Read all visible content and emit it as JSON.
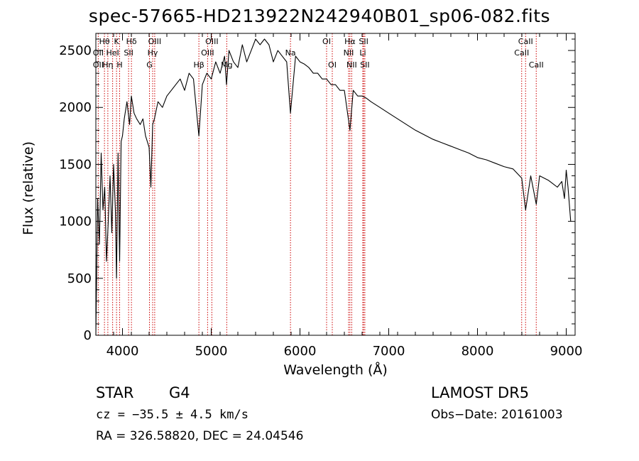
{
  "chart_data": {
    "type": "line",
    "title": "spec-57665-HD213922N242940B01_sp06-082.fits",
    "xlabel": "Wavelength (Å)",
    "ylabel": "Flux (relative)",
    "xlim": [
      3700,
      9100
    ],
    "ylim": [
      0,
      2650
    ],
    "xticks": [
      4000,
      5000,
      6000,
      7000,
      8000,
      9000
    ],
    "yticks": [
      0,
      500,
      1000,
      1500,
      2000,
      2500
    ],
    "grid": false,
    "line_color": "#000000",
    "marker_color": "#cc0000",
    "spectrum": {
      "name": "",
      "x": [
        3700,
        3720,
        3740,
        3760,
        3780,
        3800,
        3820,
        3840,
        3860,
        3880,
        3900,
        3920,
        3933,
        3950,
        3968,
        3985,
        4000,
        4020,
        4050,
        4080,
        4100,
        4130,
        4160,
        4200,
        4230,
        4260,
        4300,
        4320,
        4340,
        4360,
        4400,
        4450,
        4500,
        4550,
        4600,
        4650,
        4700,
        4750,
        4800,
        4861,
        4900,
        4950,
        5000,
        5050,
        5100,
        5150,
        5172,
        5200,
        5250,
        5300,
        5350,
        5400,
        5450,
        5500,
        5550,
        5600,
        5650,
        5700,
        5750,
        5800,
        5850,
        5893,
        5950,
        6000,
        6050,
        6100,
        6150,
        6200,
        6250,
        6300,
        6350,
        6400,
        6450,
        6500,
        6563,
        6600,
        6650,
        6700,
        6750,
        6800,
        6900,
        7000,
        7100,
        7200,
        7300,
        7400,
        7500,
        7600,
        7700,
        7800,
        7900,
        8000,
        8100,
        8200,
        8300,
        8400,
        8498,
        8542,
        8600,
        8662,
        8700,
        8750,
        8800,
        8850,
        8900,
        8950,
        8980,
        9000,
        9020,
        9050
      ],
      "y": [
        0,
        1200,
        800,
        1600,
        1100,
        1300,
        650,
        1000,
        1400,
        900,
        1500,
        1100,
        500,
        1600,
        650,
        1700,
        1750,
        1900,
        2050,
        1850,
        2100,
        1950,
        1900,
        1850,
        1900,
        1750,
        1650,
        1300,
        1850,
        1900,
        2050,
        2000,
        2100,
        2150,
        2200,
        2250,
        2150,
        2300,
        2250,
        1750,
        2200,
        2300,
        2250,
        2400,
        2300,
        2450,
        2200,
        2500,
        2400,
        2350,
        2550,
        2400,
        2500,
        2600,
        2550,
        2600,
        2550,
        2400,
        2500,
        2450,
        2400,
        1950,
        2450,
        2400,
        2380,
        2350,
        2300,
        2300,
        2250,
        2250,
        2200,
        2200,
        2150,
        2150,
        1800,
        2150,
        2100,
        2100,
        2080,
        2050,
        2000,
        1950,
        1900,
        1850,
        1800,
        1760,
        1720,
        1690,
        1660,
        1630,
        1600,
        1560,
        1540,
        1510,
        1480,
        1460,
        1380,
        1100,
        1400,
        1150,
        1400,
        1380,
        1360,
        1330,
        1300,
        1350,
        1200,
        1450,
        1300,
        1000
      ]
    },
    "line_markers": [
      {
        "label": "Hθ",
        "x": 3797,
        "row": 0
      },
      {
        "label": "K",
        "x": 3933,
        "row": 0
      },
      {
        "label": "Hδ",
        "x": 4101,
        "row": 0
      },
      {
        "label": "OIII",
        "x": 4363,
        "row": 0
      },
      {
        "label": "OIII",
        "x": 5007,
        "row": 0
      },
      {
        "label": "OI",
        "x": 6300,
        "row": 0
      },
      {
        "label": "Hα",
        "x": 6563,
        "row": 0
      },
      {
        "label": "SII",
        "x": 6717,
        "row": 0
      },
      {
        "label": "CaII",
        "x": 8542,
        "row": 0
      },
      {
        "label": "OII",
        "x": 3727,
        "row": 1
      },
      {
        "label": "HeI",
        "x": 3889,
        "row": 1
      },
      {
        "label": "SII",
        "x": 4069,
        "row": 1
      },
      {
        "label": "Hγ",
        "x": 4340,
        "row": 1
      },
      {
        "label": "OIII",
        "x": 4959,
        "row": 1
      },
      {
        "label": "Na",
        "x": 5893,
        "row": 1
      },
      {
        "label": "NII",
        "x": 6548,
        "row": 1
      },
      {
        "label": "Li",
        "x": 6708,
        "row": 1
      },
      {
        "label": "CaII",
        "x": 8498,
        "row": 1
      },
      {
        "label": "OII",
        "x": 3727,
        "row": 2
      },
      {
        "label": "Hη",
        "x": 3835,
        "row": 2
      },
      {
        "label": "H",
        "x": 3968,
        "row": 2
      },
      {
        "label": "G",
        "x": 4304,
        "row": 2
      },
      {
        "label": "Hβ",
        "x": 4861,
        "row": 2
      },
      {
        "label": "Mg",
        "x": 5175,
        "row": 2
      },
      {
        "label": "OI",
        "x": 6364,
        "row": 2
      },
      {
        "label": "NII",
        "x": 6583,
        "row": 2
      },
      {
        "label": "SII",
        "x": 6731,
        "row": 2
      },
      {
        "label": "CaII",
        "x": 8662,
        "row": 2
      }
    ]
  },
  "info": {
    "class": "STAR",
    "subclass": "G4",
    "survey": "LAMOST DR5",
    "cz": "cz = −35.5 ± 4.5 km/s",
    "obs_date": "Obs−Date: 20161003",
    "radec": "RA = 326.58820, DEC =  24.04546"
  }
}
